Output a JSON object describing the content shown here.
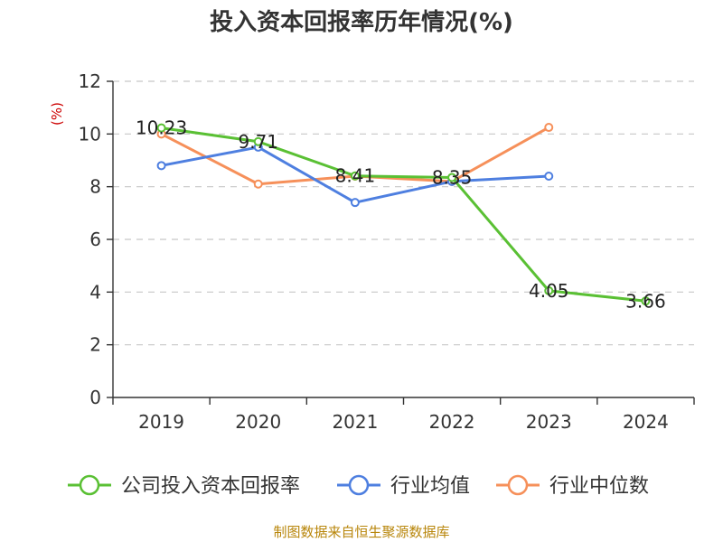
{
  "chart_data": {
    "type": "line",
    "title": "投入资本回报率历年情况(%)",
    "ylabel": "(%)",
    "categories": [
      "2019",
      "2020",
      "2021",
      "2022",
      "2023",
      "2024"
    ],
    "ylim": [
      0,
      12
    ],
    "yticks": [
      0,
      2,
      4,
      6,
      8,
      10,
      12
    ],
    "grid": true,
    "legend_position": "bottom",
    "series": [
      {
        "name": "公司投入资本回报率",
        "color": "#5ac034",
        "values": [
          10.23,
          9.71,
          8.41,
          8.35,
          4.05,
          3.66
        ],
        "labels": [
          "10.23",
          "9.71",
          "8.41",
          "8.35",
          "4.05",
          "3.66"
        ]
      },
      {
        "name": "行业均值",
        "color": "#4e7fe0",
        "values": [
          8.8,
          9.5,
          7.4,
          8.2,
          8.4,
          null
        ]
      },
      {
        "name": "行业中位数",
        "color": "#f6905a",
        "values": [
          10.0,
          8.1,
          8.4,
          8.2,
          10.25,
          null
        ]
      }
    ]
  },
  "source": "制图数据来自恒生聚源数据库"
}
